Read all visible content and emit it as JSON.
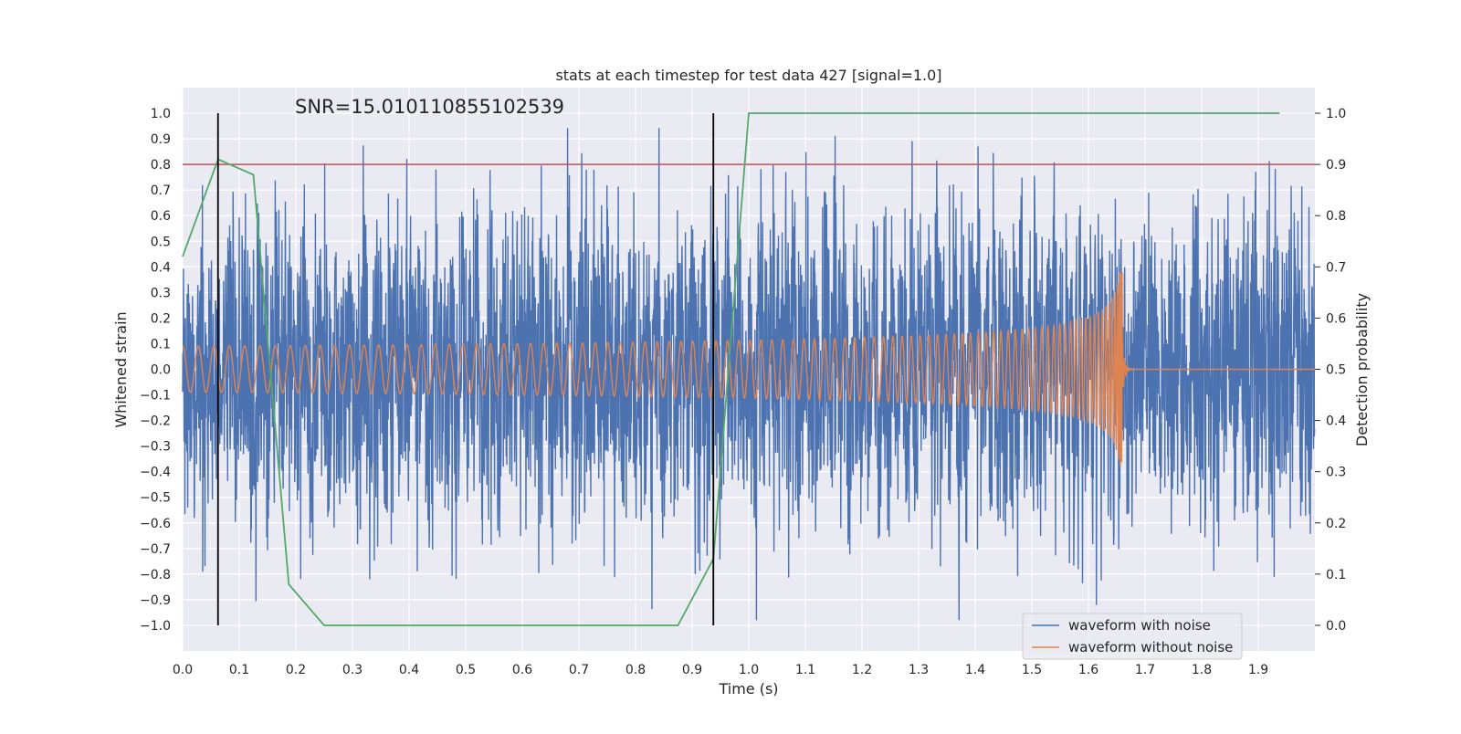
{
  "chart_data": {
    "type": "line",
    "title": "stats at each timestep for test data 427 [signal=1.0]",
    "annotation": "SNR=15.010110855102539",
    "xlabel": "Time (s)",
    "ylabel": "Whitened strain",
    "y2label": "Detection probability",
    "xlim": [
      0.0,
      2.0
    ],
    "ylim": [
      -1.1,
      1.1
    ],
    "y2lim": [
      -0.05,
      1.05
    ],
    "xticks": [
      "0.0",
      "0.1",
      "0.2",
      "0.3",
      "0.4",
      "0.5",
      "0.6",
      "0.7",
      "0.8",
      "0.9",
      "1.0",
      "1.1",
      "1.2",
      "1.3",
      "1.4",
      "1.5",
      "1.6",
      "1.7",
      "1.8",
      "1.9"
    ],
    "yticks": [
      "1.0",
      "0.9",
      "0.8",
      "0.7",
      "0.6",
      "0.5",
      "0.4",
      "0.3",
      "0.2",
      "0.1",
      "0.0",
      "−0.1",
      "−0.2",
      "−0.3",
      "−0.4",
      "−0.5",
      "−0.6",
      "−0.7",
      "−0.8",
      "−0.9",
      "−1.0"
    ],
    "y2ticks": [
      "1.0",
      "0.9",
      "0.8",
      "0.7",
      "0.6",
      "0.5",
      "0.4",
      "0.3",
      "0.2",
      "0.1",
      "0.0"
    ],
    "grid": true,
    "legend_position": "bottom-right",
    "series": [
      {
        "name": "waveform with noise",
        "color": "#4c72b0",
        "axis": "left",
        "kind": "noisy_strain",
        "amplitude_approx": 0.9
      },
      {
        "name": "waveform without noise",
        "color": "#dd8452",
        "axis": "left",
        "kind": "chirp",
        "amplitude_start": 0.09,
        "peak_amplitude": 0.38,
        "merger_time": 1.66
      },
      {
        "color": "#55a868",
        "axis": "right",
        "x": [
          0.0,
          0.0625,
          0.125,
          0.1875,
          0.25,
          0.3125,
          0.375,
          0.4375,
          0.5,
          0.5625,
          0.625,
          0.6875,
          0.75,
          0.8125,
          0.875,
          0.9375,
          1.0,
          1.0625,
          1.125,
          1.1875,
          1.25,
          1.3125,
          1.375,
          1.4375,
          1.5,
          1.5625,
          1.625,
          1.6875,
          1.75,
          1.8125,
          1.875,
          1.9375
        ],
        "values": [
          0.72,
          0.91,
          0.88,
          0.08,
          0.0,
          0.0,
          0.0,
          0.0,
          0.0,
          0.0,
          0.0,
          0.0,
          0.0,
          0.0,
          0.0,
          0.13,
          1.0,
          1.0,
          1.0,
          1.0,
          1.0,
          1.0,
          1.0,
          1.0,
          1.0,
          1.0,
          1.0,
          1.0,
          1.0,
          1.0,
          1.0,
          1.0
        ]
      }
    ],
    "threshold": {
      "value": 0.9,
      "axis": "right",
      "color": "#c44e52"
    },
    "vertical_markers": {
      "x": [
        0.0625,
        0.9375
      ],
      "color": "#000000"
    },
    "colors": {
      "background": "#eaeaf2",
      "grid": "#ffffff"
    }
  }
}
